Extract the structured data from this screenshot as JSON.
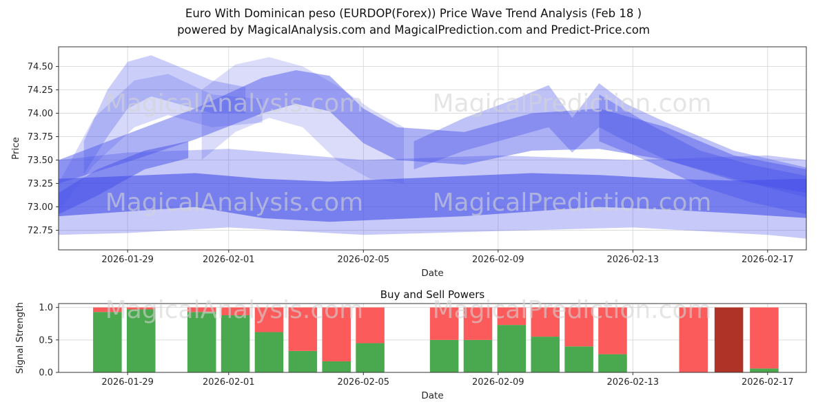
{
  "title": {
    "line1": "Euro With Dominican peso (EURDOP(Forex)) Price Wave Trend Analysis (Feb 18 )",
    "line2": "powered by MagicalAnalysis.com and MagicalPrediction.com and Predict-Price.com"
  },
  "watermarks": {
    "left": "MagicalAnalysis.com",
    "right": "MagicalPrediction.com"
  },
  "chart_data": [
    {
      "type": "area",
      "name": "price_wave_trend",
      "title": "",
      "xlabel": "Date",
      "ylabel": "Price",
      "xlim": [
        -2.05,
        20.15
      ],
      "ylim": [
        72.54,
        74.71
      ],
      "band_color": "#4650e8",
      "x_ticks": [
        {
          "day": 0,
          "label": "2026-01-29"
        },
        {
          "day": 3,
          "label": "2026-02-01"
        },
        {
          "day": 7,
          "label": "2026-02-05"
        },
        {
          "day": 11,
          "label": "2026-02-09"
        },
        {
          "day": 15,
          "label": "2026-02-13"
        },
        {
          "day": 19,
          "label": "2026-02-17"
        }
      ],
      "y_ticks": [
        {
          "v": 72.75,
          "label": "72.75"
        },
        {
          "v": 73.0,
          "label": "73.00"
        },
        {
          "v": 73.25,
          "label": "73.25"
        },
        {
          "v": 73.5,
          "label": "73.50"
        },
        {
          "v": 73.75,
          "label": "73.75"
        },
        {
          "v": 74.0,
          "label": "74.00"
        },
        {
          "v": 74.25,
          "label": "74.25"
        },
        {
          "v": 74.5,
          "label": "74.50"
        }
      ],
      "bands": [
        {
          "name": "base-envelope",
          "opacity": 0.3,
          "x": [
            -2.05,
            0,
            3,
            7,
            11,
            15,
            19,
            20.15
          ],
          "top": [
            73.5,
            73.58,
            73.62,
            73.5,
            73.55,
            73.5,
            73.55,
            73.5
          ],
          "bottom": [
            72.7,
            72.72,
            72.78,
            72.7,
            72.74,
            72.78,
            72.7,
            72.66
          ]
        },
        {
          "name": "dark-core",
          "opacity": 0.62,
          "x": [
            -2.05,
            0,
            2,
            4,
            6,
            8,
            10,
            12,
            14,
            16,
            18,
            20.15
          ],
          "top": [
            73.3,
            73.33,
            73.36,
            73.3,
            73.27,
            73.3,
            73.33,
            73.36,
            73.34,
            73.3,
            73.28,
            73.3
          ],
          "bottom": [
            72.9,
            72.95,
            73.0,
            72.88,
            72.84,
            72.87,
            72.9,
            72.95,
            73.0,
            72.97,
            72.93,
            72.88
          ]
        },
        {
          "name": "mid-band",
          "opacity": 0.45,
          "x": [
            -2.05,
            0,
            2,
            4,
            5,
            6,
            7,
            8,
            10,
            12,
            14,
            16,
            18,
            20.15
          ],
          "top": [
            73.5,
            73.78,
            74.05,
            74.38,
            74.46,
            74.4,
            74.05,
            73.85,
            73.8,
            74.0,
            74.05,
            73.85,
            73.55,
            73.4
          ],
          "bottom": [
            73.25,
            73.48,
            73.72,
            74.0,
            74.1,
            74.02,
            73.68,
            73.5,
            73.45,
            73.6,
            73.62,
            73.5,
            73.28,
            73.15
          ]
        },
        {
          "name": "left-spike-a",
          "opacity": 0.28,
          "x": [
            -1.3,
            -0.6,
            0,
            0.7,
            1.5,
            2.5,
            3.5
          ],
          "top": [
            73.7,
            74.25,
            74.55,
            74.62,
            74.5,
            74.35,
            74.28
          ],
          "bottom": [
            73.35,
            73.75,
            74.05,
            74.18,
            74.1,
            74.0,
            74.0
          ]
        },
        {
          "name": "left-spike-b",
          "opacity": 0.22,
          "x": [
            -2.05,
            -1,
            0.2,
            1.2,
            2.5,
            4
          ],
          "top": [
            73.25,
            73.95,
            74.35,
            74.42,
            74.2,
            74.15
          ],
          "bottom": [
            72.95,
            73.45,
            73.85,
            73.98,
            73.85,
            73.9
          ]
        },
        {
          "name": "left-fan",
          "opacity": 0.5,
          "x": [
            -2.05,
            -0.9,
            0.5,
            1.8
          ],
          "top": [
            73.15,
            73.4,
            73.6,
            73.7
          ],
          "bottom": [
            72.92,
            73.12,
            73.4,
            73.52
          ]
        },
        {
          "name": "hump-light",
          "opacity": 0.2,
          "x": [
            2.2,
            3.2,
            4.2,
            5.2,
            6.2,
            7.2,
            8.2
          ],
          "top": [
            74.25,
            74.52,
            74.6,
            74.5,
            74.3,
            74.05,
            73.85
          ],
          "bottom": [
            73.5,
            73.8,
            73.95,
            73.85,
            73.5,
            73.3,
            73.25
          ]
        },
        {
          "name": "right-hump",
          "opacity": 0.35,
          "x": [
            8.5,
            10,
            11.5,
            12.5,
            13.2,
            14,
            14.8,
            16,
            18,
            20.15
          ],
          "top": [
            73.7,
            73.95,
            74.15,
            74.3,
            73.95,
            74.32,
            74.1,
            73.9,
            73.6,
            73.42
          ],
          "bottom": [
            73.4,
            73.6,
            73.75,
            73.85,
            73.58,
            73.85,
            73.7,
            73.5,
            73.3,
            73.1
          ]
        },
        {
          "name": "descend-tail",
          "opacity": 0.4,
          "x": [
            14,
            15.5,
            17,
            18.5,
            20.15
          ],
          "top": [
            74.2,
            73.88,
            73.6,
            73.45,
            73.33
          ],
          "bottom": [
            73.7,
            73.48,
            73.22,
            73.05,
            72.92
          ]
        }
      ]
    },
    {
      "type": "bar",
      "name": "buy_sell_powers",
      "title": "Buy and Sell Powers",
      "xlabel": "Date",
      "ylabel": "Signal Strength",
      "xlim": [
        -2.05,
        20.15
      ],
      "ylim": [
        0,
        1.06
      ],
      "bar_width_days": 0.85,
      "colors": {
        "buy": "#4aa84e",
        "sell": "#fb5b5b",
        "sell_dark": "#b03328"
      },
      "x_ticks": [
        {
          "day": 0,
          "label": "2026-01-29"
        },
        {
          "day": 3,
          "label": "2026-02-01"
        },
        {
          "day": 7,
          "label": "2026-02-05"
        },
        {
          "day": 11,
          "label": "2026-02-09"
        },
        {
          "day": 15,
          "label": "2026-02-13"
        },
        {
          "day": 19,
          "label": "2026-02-17"
        }
      ],
      "y_ticks": [
        {
          "v": 0,
          "label": "0.0"
        },
        {
          "v": 0.5,
          "label": "0.5"
        },
        {
          "v": 1,
          "label": "1.0"
        }
      ],
      "bars": [
        {
          "day": -0.6,
          "buy": 0.93,
          "sell": 0.07
        },
        {
          "day": 0.4,
          "buy": 0.97,
          "sell": 0.03
        },
        {
          "day": 2.2,
          "buy": 0.93,
          "sell": 0.07
        },
        {
          "day": 3.2,
          "buy": 0.88,
          "sell": 0.12
        },
        {
          "day": 4.2,
          "buy": 0.62,
          "sell": 0.38
        },
        {
          "day": 5.2,
          "buy": 0.33,
          "sell": 0.67
        },
        {
          "day": 6.2,
          "buy": 0.17,
          "sell": 0.83
        },
        {
          "day": 7.2,
          "buy": 0.45,
          "sell": 0.55
        },
        {
          "day": 9.4,
          "buy": 0.5,
          "sell": 0.5
        },
        {
          "day": 10.4,
          "buy": 0.5,
          "sell": 0.5
        },
        {
          "day": 11.4,
          "buy": 0.73,
          "sell": 0.27
        },
        {
          "day": 12.4,
          "buy": 0.55,
          "sell": 0.45
        },
        {
          "day": 13.4,
          "buy": 0.4,
          "sell": 0.6
        },
        {
          "day": 14.4,
          "buy": 0.28,
          "sell": 0.72
        },
        {
          "day": 16.8,
          "buy": 0.0,
          "sell": 1.0
        },
        {
          "day": 17.85,
          "buy": 0.0,
          "sell": 1.0,
          "variant": "dark"
        },
        {
          "day": 18.9,
          "buy": 0.06,
          "sell": 0.94
        }
      ]
    }
  ]
}
